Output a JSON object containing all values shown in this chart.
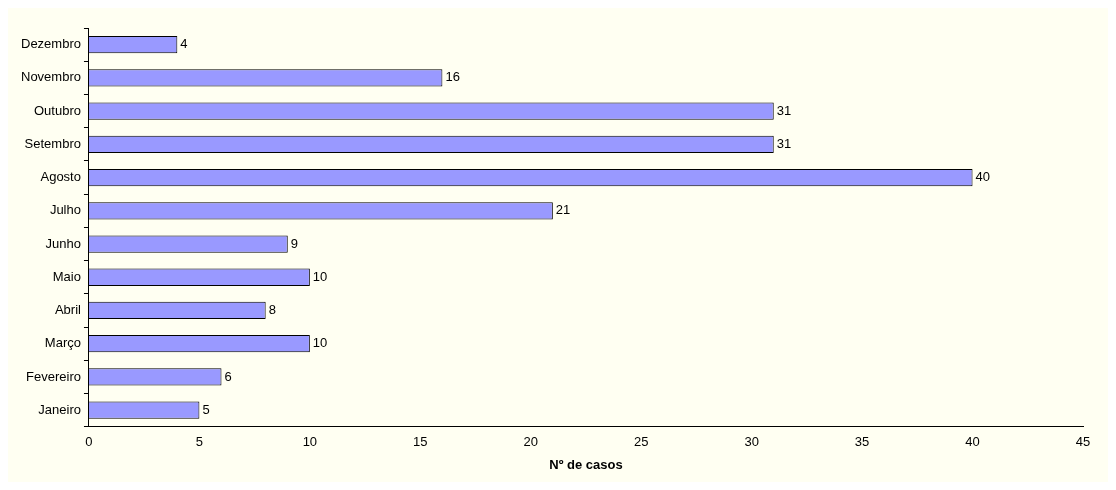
{
  "chart_data": {
    "type": "bar",
    "orientation": "horizontal",
    "xlabel": "Nº de casos",
    "categories": [
      "Dezembro",
      "Novembro",
      "Outubro",
      "Setembro",
      "Agosto",
      "Julho",
      "Junho",
      "Maio",
      "Abril",
      "Março",
      "Fevereiro",
      "Janeiro"
    ],
    "values": [
      4,
      16,
      31,
      31,
      40,
      21,
      9,
      10,
      8,
      10,
      6,
      5
    ],
    "color": "#9999ff",
    "xlim": [
      0,
      45
    ],
    "xticks": [
      0,
      5,
      10,
      15,
      20,
      25,
      30,
      35,
      40,
      45
    ],
    "grid": false,
    "legend": false,
    "data_labels": true
  }
}
